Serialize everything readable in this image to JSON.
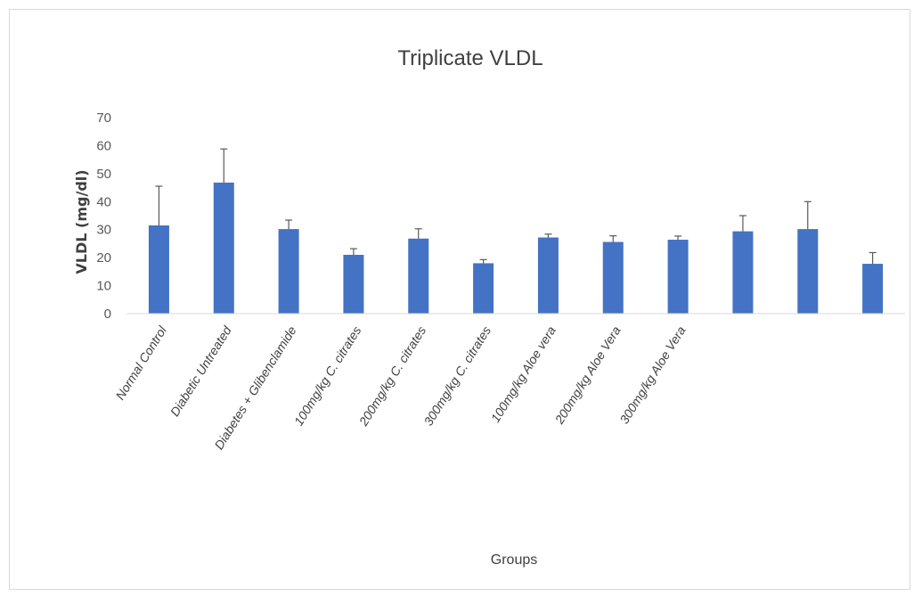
{
  "chart_data": {
    "type": "bar",
    "title": "Triplicate VLDL",
    "xlabel": "Groups",
    "ylabel": "VLDL (mg/dl)",
    "ylim": [
      0,
      70
    ],
    "yticks": [
      0,
      10,
      20,
      30,
      40,
      50,
      60,
      70
    ],
    "grid": false,
    "legend": "none",
    "bar_color": "#4472c4",
    "error_bar_color": "#595959",
    "categories": [
      "Normal Control",
      "Diabetic  Untreated",
      "Diabetes + Glibenclamide",
      "100mg/kg C. citrates",
      "200mg/kg C. citrates",
      "300mg/kg C. citrates",
      "100mg/kg Aloe vera",
      "200mg/kg Aloe Vera",
      "300mg/kg Aloe Vera",
      "",
      "",
      ""
    ],
    "values": [
      31.5,
      46.8,
      30.2,
      21.0,
      26.8,
      18.0,
      27.2,
      25.6,
      26.4,
      29.4,
      30.2,
      17.8
    ],
    "errors": [
      14.0,
      12.0,
      3.2,
      2.2,
      3.5,
      1.3,
      1.2,
      2.2,
      1.3,
      5.6,
      9.8,
      4.0
    ]
  }
}
